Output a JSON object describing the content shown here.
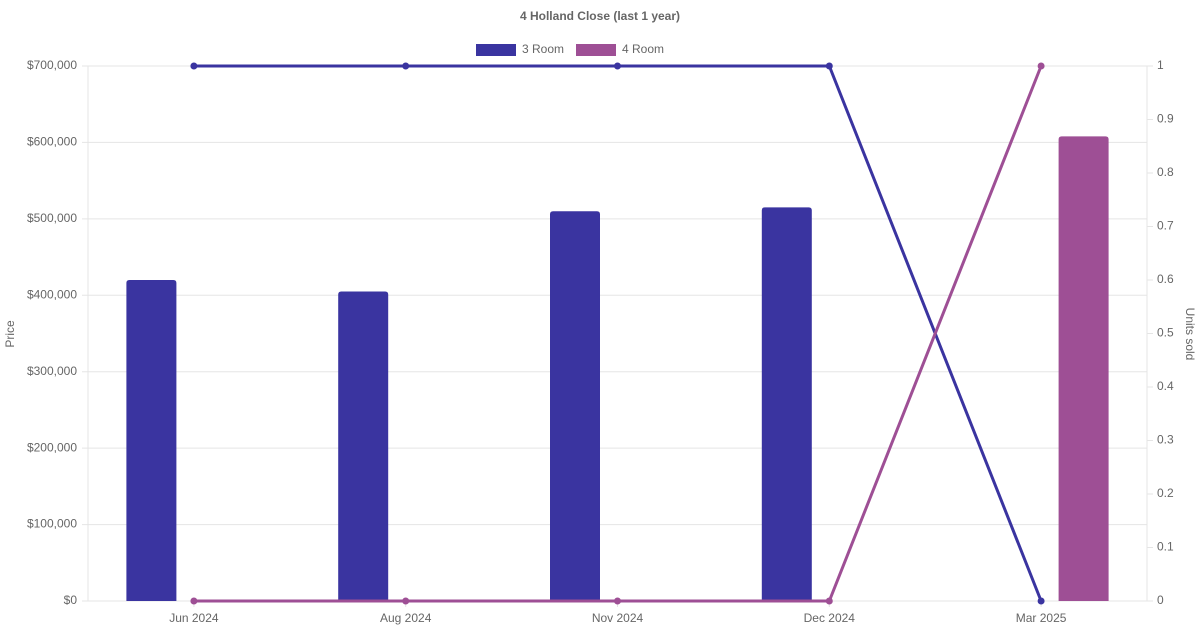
{
  "chart_data": {
    "type": "bar-line",
    "title": "4 Holland Close (last 1 year)",
    "y_label": "Price",
    "y2_label": "Units sold",
    "categories": [
      "Jun 2024",
      "Aug 2024",
      "Nov 2024",
      "Dec 2024",
      "Mar 2025"
    ],
    "series": [
      {
        "name": "3 Room",
        "color": "#3a34a0",
        "values": [
          420000,
          405000,
          510000,
          515000,
          null
        ],
        "units": [
          1,
          1,
          1,
          1,
          0
        ],
        "axis_units": "y2"
      },
      {
        "name": "4 Room",
        "color": "#9e4f95",
        "values": [
          null,
          null,
          null,
          null,
          608000
        ],
        "units": [
          0,
          0,
          0,
          0,
          1
        ],
        "axis_units": "y2"
      }
    ],
    "ylim": [
      0,
      700000
    ],
    "yticks": [
      {
        "value": 0,
        "label": "$0"
      },
      {
        "value": 100000,
        "label": "$100,000"
      },
      {
        "value": 200000,
        "label": "$200,000"
      },
      {
        "value": 300000,
        "label": "$300,000"
      },
      {
        "value": 400000,
        "label": "$400,000"
      },
      {
        "value": 500000,
        "label": "$500,000"
      },
      {
        "value": 600000,
        "label": "$600,000"
      },
      {
        "value": 700000,
        "label": "$700,000"
      }
    ],
    "y2lim": [
      0,
      1
    ],
    "y2ticks": [
      0,
      0.1,
      0.2,
      0.3,
      0.4,
      0.5,
      0.6,
      0.7,
      0.8,
      0.9,
      1
    ],
    "grid": true,
    "legend": "top"
  }
}
